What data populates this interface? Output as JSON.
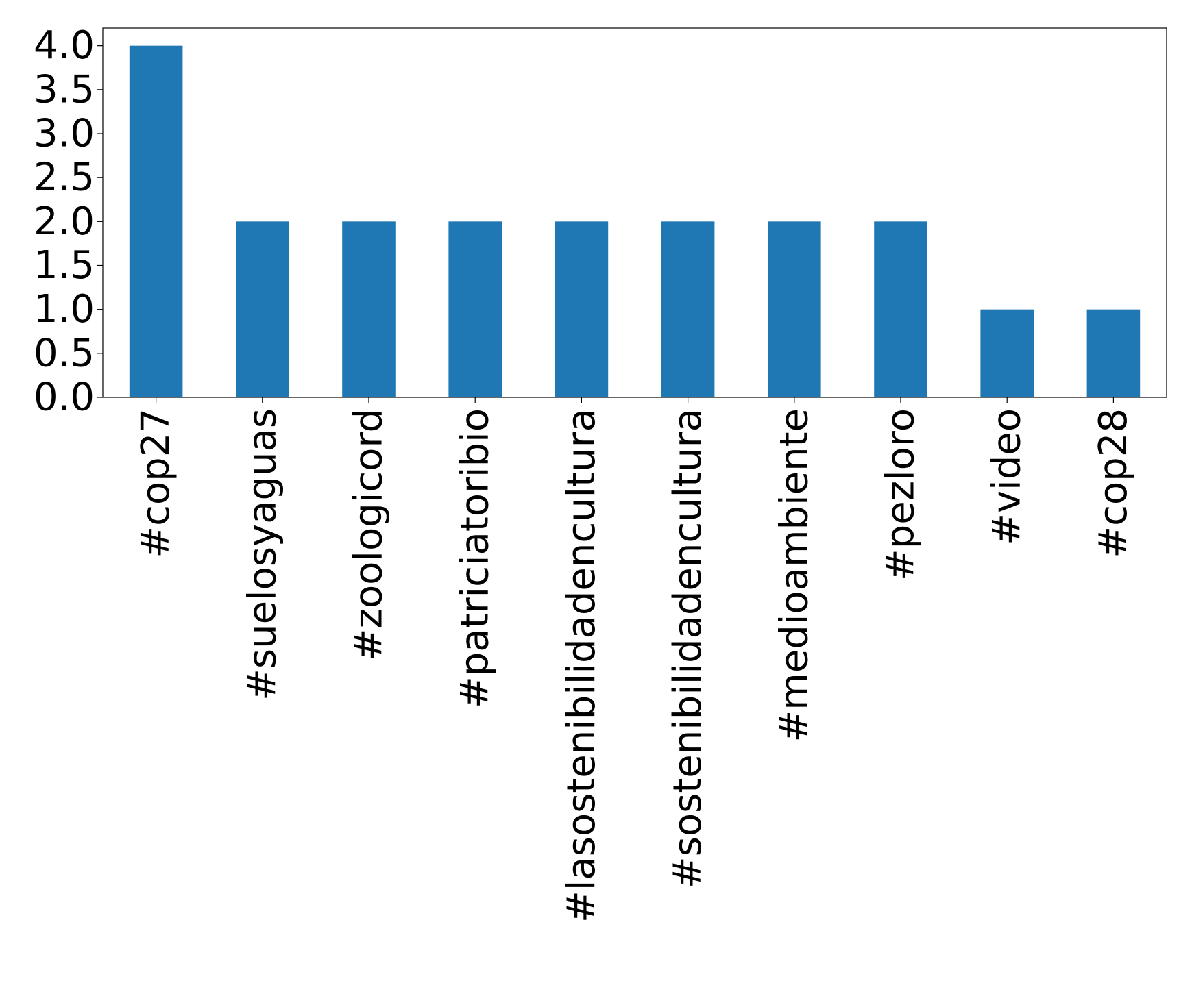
{
  "chart_data": {
    "type": "bar",
    "title": "",
    "xlabel": "",
    "ylabel": "",
    "categories": [
      "#cop27",
      "#suelosyaguas",
      "#zoologicord",
      "#patriciatoribio",
      "#lasostenibilidadencultura",
      "#sostenibilidadencultura",
      "#medioambiente",
      "#pezloro",
      "#video",
      "#cop28"
    ],
    "values": [
      4,
      2,
      2,
      2,
      2,
      2,
      2,
      2,
      1,
      1
    ],
    "ylim": [
      0,
      4.2
    ],
    "yticks": [
      0.0,
      0.5,
      1.0,
      1.5,
      2.0,
      2.5,
      3.0,
      3.5,
      4.0
    ],
    "ytick_labels": [
      "0.0",
      "0.5",
      "1.0",
      "1.5",
      "2.0",
      "2.5",
      "3.0",
      "3.5",
      "4.0"
    ],
    "bar_color": "#1f77b4",
    "grid": false,
    "legend": "none"
  }
}
